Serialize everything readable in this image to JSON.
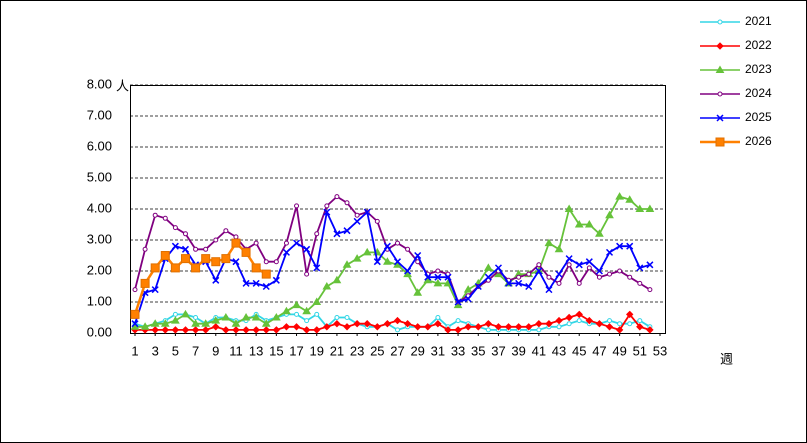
{
  "chart_data": {
    "type": "line",
    "y_unit_label": "人",
    "x_label": "週",
    "x": [
      1,
      2,
      3,
      4,
      5,
      6,
      7,
      8,
      9,
      10,
      11,
      12,
      13,
      14,
      15,
      16,
      17,
      18,
      19,
      20,
      21,
      22,
      23,
      24,
      25,
      26,
      27,
      28,
      29,
      30,
      31,
      32,
      33,
      34,
      35,
      36,
      37,
      38,
      39,
      40,
      41,
      42,
      43,
      44,
      45,
      46,
      47,
      48,
      49,
      50,
      51,
      52,
      53
    ],
    "xlim": [
      1,
      53
    ],
    "xticks": [
      1,
      3,
      5,
      7,
      9,
      11,
      13,
      15,
      17,
      19,
      21,
      23,
      25,
      27,
      29,
      31,
      33,
      35,
      37,
      39,
      41,
      43,
      45,
      47,
      49,
      51,
      53
    ],
    "ylim": [
      0,
      8
    ],
    "yticks": [
      {
        "value": 0,
        "label": "0.00"
      },
      {
        "value": 1,
        "label": "1.00"
      },
      {
        "value": 2,
        "label": "2.00"
      },
      {
        "value": 3,
        "label": "3.00"
      },
      {
        "value": 4,
        "label": "4.00"
      },
      {
        "value": 5,
        "label": "5.00"
      },
      {
        "value": 6,
        "label": "6.00"
      },
      {
        "value": 7,
        "label": "7.00"
      },
      {
        "value": 8,
        "label": "8.00"
      }
    ],
    "grid": true,
    "legend": "right",
    "series": [
      {
        "name": "2021",
        "color": "#33d6e6",
        "marker": "circle",
        "values": [
          0.3,
          0.2,
          0.3,
          0.4,
          0.6,
          0.6,
          0.5,
          0.3,
          0.5,
          0.5,
          0.4,
          0.4,
          0.6,
          0.4,
          0.5,
          0.6,
          0.6,
          0.4,
          0.6,
          0.2,
          0.5,
          0.5,
          0.3,
          0.2,
          0.2,
          0.3,
          0.1,
          0.2,
          0.2,
          0.2,
          0.5,
          0.2,
          0.4,
          0.3,
          0.2,
          0.1,
          0.1,
          0.1,
          0.1,
          0.1,
          0.1,
          0.2,
          0.2,
          0.3,
          0.4,
          0.3,
          0.3,
          0.4,
          0.3,
          0.3,
          0.4,
          0.2,
          null
        ]
      },
      {
        "name": "2022",
        "color": "#ff0000",
        "marker": "diamond",
        "values": [
          0.1,
          0.1,
          0.1,
          0.1,
          0.1,
          0.1,
          0.1,
          0.1,
          0.2,
          0.1,
          0.1,
          0.1,
          0.1,
          0.1,
          0.1,
          0.2,
          0.2,
          0.1,
          0.1,
          0.2,
          0.3,
          0.2,
          0.3,
          0.3,
          0.2,
          0.3,
          0.4,
          0.3,
          0.2,
          0.2,
          0.3,
          0.1,
          0.1,
          0.2,
          0.2,
          0.3,
          0.2,
          0.2,
          0.2,
          0.2,
          0.3,
          0.3,
          0.4,
          0.5,
          0.6,
          0.4,
          0.3,
          0.2,
          0.1,
          0.6,
          0.2,
          0.1,
          null
        ]
      },
      {
        "name": "2023",
        "color": "#66c23a",
        "marker": "triangle",
        "values": [
          0.2,
          0.2,
          0.3,
          0.3,
          0.4,
          0.6,
          0.3,
          0.3,
          0.4,
          0.5,
          0.3,
          0.5,
          0.5,
          0.3,
          0.5,
          0.7,
          0.9,
          0.7,
          1.0,
          1.5,
          1.7,
          2.2,
          2.4,
          2.6,
          2.6,
          2.3,
          2.2,
          1.9,
          1.3,
          1.7,
          1.6,
          1.6,
          0.9,
          1.4,
          1.6,
          2.1,
          1.9,
          1.6,
          1.9,
          1.9,
          2.0,
          2.9,
          2.7,
          4.0,
          3.5,
          3.5,
          3.2,
          3.8,
          4.4,
          4.3,
          4.0,
          4.0,
          null
        ]
      },
      {
        "name": "2024",
        "color": "#800080",
        "marker": "circle",
        "values": [
          1.4,
          2.7,
          3.8,
          3.7,
          3.4,
          3.2,
          2.7,
          2.7,
          3.0,
          3.3,
          3.1,
          2.7,
          2.9,
          2.3,
          2.3,
          2.9,
          4.1,
          1.9,
          3.2,
          4.1,
          4.4,
          4.2,
          3.8,
          3.9,
          3.6,
          2.7,
          2.9,
          2.7,
          2.3,
          1.9,
          2.0,
          1.9,
          1.0,
          1.2,
          1.5,
          1.7,
          2.0,
          1.7,
          1.8,
          1.9,
          2.2,
          1.8,
          1.6,
          2.2,
          1.6,
          2.1,
          1.8,
          1.9,
          2.0,
          1.8,
          1.6,
          1.4,
          null
        ]
      },
      {
        "name": "2025",
        "color": "#0000ff",
        "marker": "x",
        "values": [
          0.3,
          1.3,
          1.4,
          2.4,
          2.8,
          2.7,
          2.2,
          2.3,
          1.7,
          2.4,
          2.3,
          1.6,
          1.6,
          1.5,
          1.7,
          2.6,
          2.9,
          2.7,
          2.1,
          3.9,
          3.2,
          3.3,
          3.6,
          3.9,
          2.3,
          2.8,
          2.3,
          2.0,
          2.5,
          1.8,
          1.8,
          1.8,
          1.0,
          1.1,
          1.5,
          1.8,
          2.1,
          1.6,
          1.6,
          1.5,
          2.0,
          1.4,
          1.9,
          2.4,
          2.2,
          2.3,
          2.0,
          2.6,
          2.8,
          2.8,
          2.1,
          2.2,
          null
        ]
      },
      {
        "name": "2026",
        "color": "#ff8000",
        "marker": "square",
        "values": [
          0.6,
          1.6,
          2.1,
          2.5,
          2.1,
          2.4,
          2.1,
          2.4,
          2.3,
          2.4,
          2.9,
          2.6,
          2.1,
          1.9,
          null,
          null,
          null,
          null,
          null,
          null,
          null,
          null,
          null,
          null,
          null,
          null,
          null,
          null,
          null,
          null,
          null,
          null,
          null,
          null,
          null,
          null,
          null,
          null,
          null,
          null,
          null,
          null,
          null,
          null,
          null,
          null,
          null,
          null,
          null,
          null,
          null,
          null,
          null
        ]
      }
    ]
  }
}
